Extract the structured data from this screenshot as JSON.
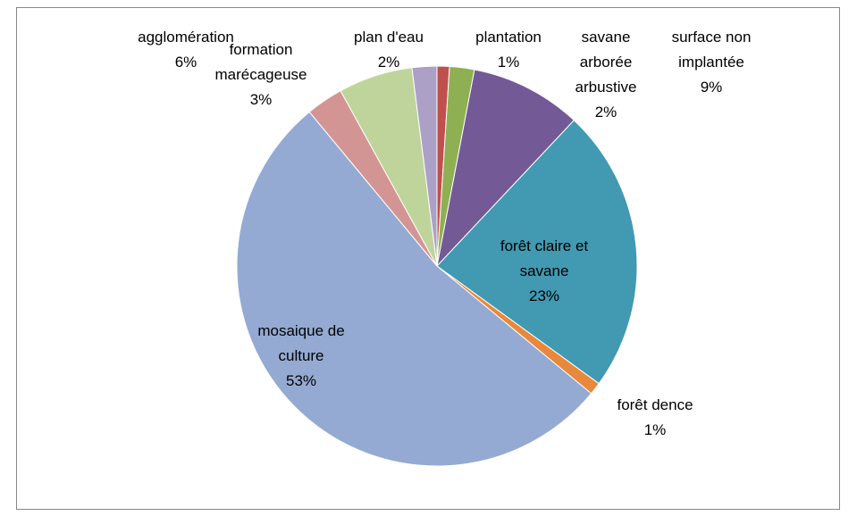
{
  "chart_data": {
    "type": "pie",
    "categories": [
      "plantation",
      "savane arborée arbustive",
      "surface non implantée",
      "forêt claire et savane",
      "forêt dence",
      "mosaique de culture",
      "formation marécageuse",
      "agglomération",
      "plan d'eau"
    ],
    "values": [
      1,
      2,
      9,
      23,
      1,
      53,
      3,
      6,
      2
    ],
    "value_labels": [
      "1%",
      "2%",
      "9%",
      "23%",
      "1%",
      "53%",
      "3%",
      "6%",
      "2%"
    ],
    "colors": [
      "#C0504D",
      "#8FAF53",
      "#735A96",
      "#4299B2",
      "#E8883C",
      "#94AAD2",
      "#D39593",
      "#BFD49B",
      "#ADA0C6"
    ]
  }
}
